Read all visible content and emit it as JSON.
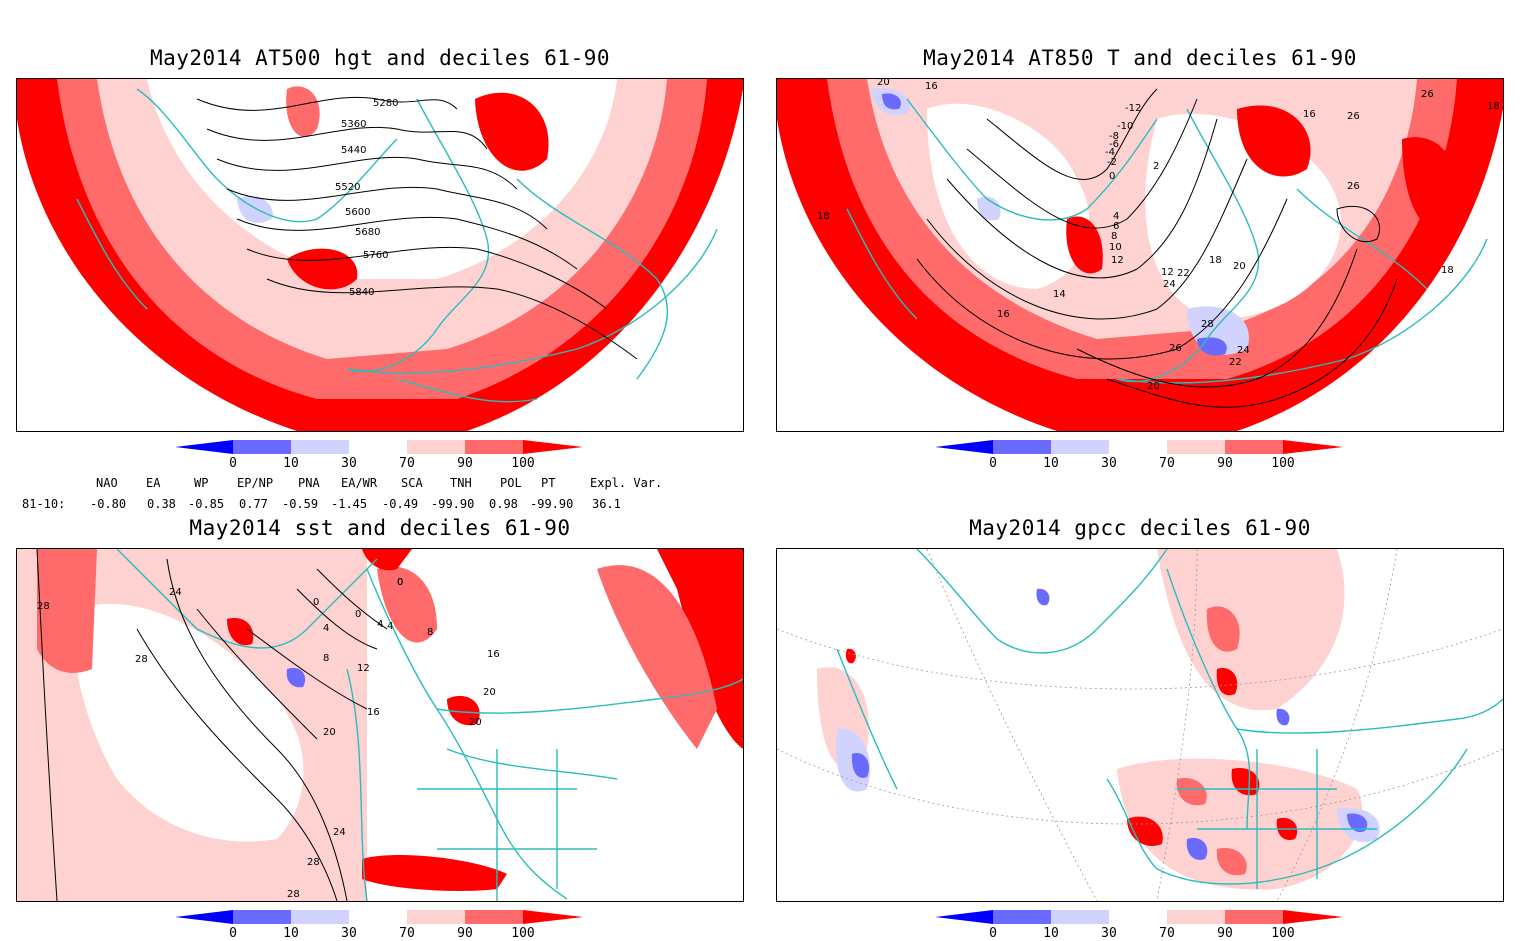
{
  "colors": {
    "d0": "#0000ff",
    "d10": "#6a6aff",
    "d30": "#d2d2ff",
    "d70": "#ffd2d2",
    "d90": "#ff6a6a",
    "d100": "#ff0000",
    "coast": "#2bbcbc",
    "contour": "#000000"
  },
  "colorbar": {
    "ticks": [
      "0",
      "10",
      "30",
      "70",
      "90",
      "100"
    ]
  },
  "panels": [
    {
      "id": "hgt500",
      "title": "May2014 AT500 hgt and deciles 61-90",
      "contour_labels": [
        "5280",
        "5360",
        "5440",
        "5520",
        "5600",
        "5680",
        "5760",
        "5840"
      ]
    },
    {
      "id": "t850",
      "title": "May2014 AT850 T and deciles 61-90",
      "contour_labels": [
        "20",
        "16",
        "-12",
        "-10",
        "-8",
        "-6",
        "-4",
        "-2",
        "2",
        "0",
        "16",
        "26",
        "26",
        "26",
        "18",
        "18",
        "4",
        "6",
        "8",
        "10",
        "12",
        "12",
        "18",
        "20",
        "24",
        "22",
        "14",
        "16",
        "28",
        "26",
        "24",
        "22",
        "20",
        "18"
      ]
    },
    {
      "id": "sst",
      "title": "May2014 sst and deciles 61-90",
      "contour_labels": [
        "28",
        "24",
        "28",
        "0",
        "0",
        "0",
        "4",
        "4",
        "8",
        "8",
        "12",
        "16",
        "20",
        "16",
        "20",
        "20",
        "24",
        "28",
        "28",
        "0",
        "4"
      ]
    },
    {
      "id": "gpcc",
      "title": "May2014 gpcc deciles 61-90",
      "contour_labels": []
    }
  ],
  "indices": {
    "headers": [
      "NAO",
      "EA",
      "WP",
      "EP/NP",
      "PNA",
      "EA/WR",
      "SCA",
      "TNH",
      "POL",
      "PT",
      "Expl. Var."
    ],
    "row_label": "81-10:",
    "values": [
      "-0.80",
      "0.38",
      "-0.85",
      "0.77",
      "-0.59",
      "-1.45",
      "-0.49",
      "-99.90",
      "0.98",
      "-99.90",
      "36.1"
    ]
  }
}
